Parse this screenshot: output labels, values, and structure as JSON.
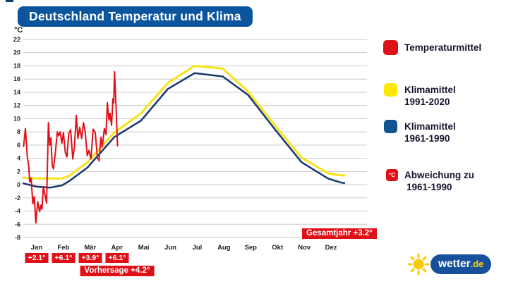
{
  "header": {
    "title": "Deutschland Temperatur und Klima"
  },
  "colors": {
    "title_bg": "#0b559f",
    "badge_red": "#e01018",
    "series_red": "#e01018",
    "series_yellow": "#f7e316",
    "series_blue": "#15396f",
    "legend_red": "#e01018",
    "legend_yellow": "#ffe800",
    "legend_blue": "#10538f",
    "grid": "#c9c9c9",
    "logo_blue": "#164f9b",
    "logo_yellow": "#ffc805"
  },
  "legend": {
    "items": [
      {
        "swatch": "red",
        "label": "Temperaturmittel",
        "sublabel": ""
      },
      {
        "swatch": "yellow",
        "label": "Klimamittel",
        "sublabel": "1991-2020"
      },
      {
        "swatch": "blue",
        "label": "Klimamittel",
        "sublabel": "1961-1990"
      },
      {
        "swatch": "red-degc",
        "swatch_text": "°C",
        "label": "Abweichung zu",
        "sublabel": "1961-1990"
      }
    ]
  },
  "logo": {
    "brand": "wetter",
    "tld": ".de"
  },
  "chart_data": {
    "type": "line",
    "title": "Deutschland Temperatur und Klima",
    "unit_label": "°C",
    "ylabel": "°C",
    "ylim": [
      -8,
      22
    ],
    "yticks": [
      22,
      20,
      18,
      16,
      14,
      12,
      10,
      8,
      6,
      4,
      2,
      0,
      -2,
      -4,
      -6,
      -8
    ],
    "x_months": [
      "Jan",
      "Feb",
      "Mär",
      "Apr",
      "Mai",
      "Jun",
      "Jul",
      "Aug",
      "Sep",
      "Okt",
      "Nov",
      "Dez"
    ],
    "grid": "horizontal-only",
    "legend_position": "right",
    "anomalies": {
      "jan": "+2.1°",
      "feb": "+6.1°",
      "maer": "+3.9°",
      "apr": "+6.1°",
      "forecast": "Vorhersage +4.2°",
      "total_year": "Gesamtjahr +3.2°"
    },
    "series": [
      {
        "name": "Temperaturmittel",
        "color": "#e01018",
        "x": [
          0.01,
          0.08,
          0.15,
          0.2,
          0.24,
          0.29,
          0.36,
          0.41,
          0.47,
          0.54,
          0.61,
          0.66,
          0.7,
          0.75,
          0.8,
          0.87,
          0.94,
          0.99,
          1.03,
          1.08,
          1.13,
          1.2,
          1.27,
          1.32,
          1.38,
          1.44,
          1.5,
          1.57,
          1.63,
          1.7,
          1.77,
          1.85,
          1.91,
          1.98,
          2.04,
          2.11,
          2.18,
          2.25,
          2.31,
          2.39,
          2.45,
          2.53,
          2.61,
          2.69,
          2.77,
          2.83,
          2.9,
          2.95,
          3.03,
          3.09,
          3.14,
          3.2,
          3.24,
          3.3,
          3.35,
          3.38,
          3.41,
          3.47,
          3.52
        ],
        "values": [
          5.8,
          8.5,
          4.2,
          2.9,
          0.4,
          1.0,
          -2.9,
          -1.8,
          -5.8,
          -2.6,
          -4.1,
          -3.1,
          -3.7,
          -0.3,
          -1.3,
          -2.8,
          9.4,
          6.0,
          7.1,
          2.9,
          2.4,
          4.9,
          8.0,
          7.4,
          8.0,
          6.3,
          7.9,
          4.9,
          4.2,
          7.8,
          8.3,
          3.9,
          5.6,
          10.5,
          7.0,
          8.7,
          7.0,
          9.4,
          8.1,
          4.4,
          5.2,
          3.9,
          8.4,
          7.9,
          4.1,
          3.6,
          7.2,
          5.7,
          8.5,
          7.6,
          12.4,
          9.8,
          10.8,
          9.0,
          13.0,
          12.4,
          17.1,
          11.5,
          5.9
        ]
      },
      {
        "name": "Klimamittel 1991-2020",
        "color": "#f7e316",
        "x": [
          0,
          0.5,
          1.45,
          1.7,
          2.4,
          3.4,
          4.4,
          5.4,
          6.4,
          7.45,
          8.4,
          9.4,
          10.4,
          11.4,
          11.8,
          12
        ],
        "values": [
          1.05,
          0.95,
          0.95,
          1.3,
          3.4,
          7.9,
          10.8,
          15.4,
          18.0,
          17.6,
          14.1,
          9.0,
          4.1,
          1.7,
          1.45,
          1.4
        ]
      },
      {
        "name": "Klimamittel 1961-1990",
        "color": "#15396f",
        "x": [
          0,
          0.5,
          1.0,
          1.45,
          1.7,
          2.4,
          3.4,
          4.4,
          5.4,
          6.4,
          7.45,
          8.4,
          9.4,
          10.4,
          11.4,
          11.9,
          12
        ],
        "values": [
          0.2,
          -0.3,
          -0.45,
          -0.1,
          0.5,
          2.6,
          7.2,
          9.7,
          14.5,
          16.9,
          16.4,
          13.6,
          8.4,
          3.4,
          0.9,
          0.3,
          0.25
        ]
      }
    ]
  }
}
